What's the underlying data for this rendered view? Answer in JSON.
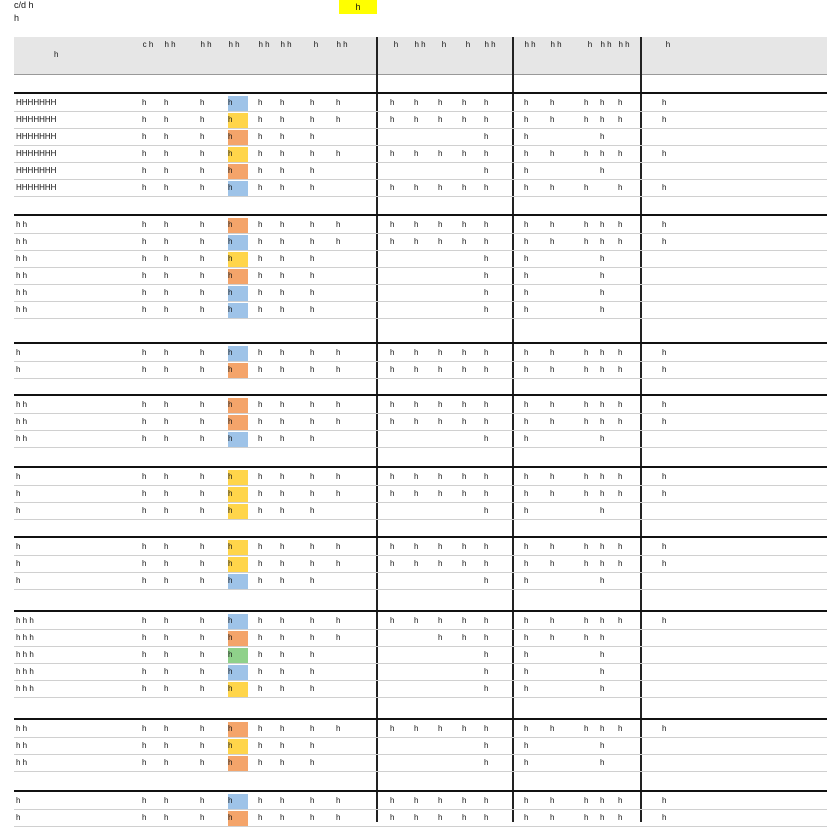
{
  "top": {
    "line1": "c/d h",
    "line2": "h",
    "highlight": "h"
  },
  "header": {
    "name": "h",
    "cols": [
      "c h",
      "h h",
      "h h",
      "h h",
      "h h",
      "h h",
      "h",
      "h h",
      "h",
      "h h",
      "h",
      "h",
      "h h",
      "h h",
      "h h",
      "h",
      "h h",
      "h h",
      "h"
    ]
  },
  "groups": [
    {
      "rows": [
        {
          "name": "HHHHHHH",
          "cells": [
            "h",
            "h",
            "h",
            "h",
            "h",
            "h",
            "h",
            "h",
            "h",
            "h",
            "h",
            "h",
            "h",
            "h",
            "h",
            "h",
            "h",
            "h",
            "h"
          ]
        },
        {
          "name": "HHHHHHH",
          "cells": [
            "h",
            "h",
            "h",
            "h",
            "h",
            "h",
            "h",
            "h",
            "h",
            "h",
            "h",
            "h",
            "h",
            "h",
            "h",
            "h",
            "h",
            "h",
            "h"
          ]
        },
        {
          "name": "HHHHHHH",
          "cells": [
            "h",
            "h",
            "h",
            "h",
            "h",
            "h",
            "h",
            "",
            "",
            "",
            "",
            "",
            "h",
            "h",
            "",
            "",
            "h",
            "",
            ""
          ]
        },
        {
          "name": "HHHHHHH",
          "cells": [
            "h",
            "h",
            "h",
            "h",
            "h",
            "h",
            "h",
            "h",
            "h",
            "h",
            "h",
            "h",
            "h",
            "h",
            "h",
            "h",
            "h",
            "h",
            "h"
          ]
        },
        {
          "name": "HHHHHHH",
          "cells": [
            "h",
            "h",
            "h",
            "h",
            "h",
            "h",
            "h",
            "",
            "",
            "",
            "",
            "",
            "h",
            "h",
            "",
            "",
            "h",
            "",
            ""
          ]
        },
        {
          "name": "HHHHHHH",
          "cells": [
            "h",
            "h",
            "h",
            "h",
            "h",
            "h",
            "h",
            "",
            "h",
            "h",
            "h",
            "h",
            "h",
            "h",
            "h",
            "h",
            "",
            "h",
            "h"
          ]
        }
      ]
    },
    {
      "rows": [
        {
          "name": "h h",
          "cells": [
            "h",
            "h",
            "h",
            "h",
            "h",
            "h",
            "h",
            "h",
            "h",
            "h",
            "h",
            "h",
            "h",
            "h",
            "h",
            "h",
            "h",
            "h",
            "h"
          ]
        },
        {
          "name": "h h",
          "cells": [
            "h",
            "h",
            "h",
            "h",
            "h",
            "h",
            "h",
            "h",
            "h",
            "h",
            "h",
            "h",
            "h",
            "h",
            "h",
            "h",
            "h",
            "h",
            "h"
          ]
        },
        {
          "name": "h h",
          "cells": [
            "h",
            "h",
            "h",
            "h",
            "h",
            "h",
            "h",
            "",
            "",
            "",
            "",
            "",
            "h",
            "h",
            "",
            "",
            "h",
            "",
            ""
          ]
        },
        {
          "name": "h h",
          "cells": [
            "h",
            "h",
            "h",
            "h",
            "h",
            "h",
            "h",
            "",
            "",
            "",
            "",
            "",
            "h",
            "h",
            "",
            "",
            "h",
            "",
            ""
          ]
        },
        {
          "name": "h h",
          "cells": [
            "h",
            "h",
            "h",
            "h",
            "h",
            "h",
            "h",
            "",
            "",
            "",
            "",
            "",
            "h",
            "h",
            "",
            "",
            "h",
            "",
            ""
          ]
        },
        {
          "name": "h h",
          "cells": [
            "h",
            "h",
            "h",
            "h",
            "h",
            "h",
            "h",
            "",
            "",
            "",
            "",
            "",
            "h",
            "h",
            "",
            "",
            "h",
            "",
            ""
          ]
        }
      ]
    },
    {
      "rows": [
        {
          "name": "h",
          "cells": [
            "h",
            "h",
            "h",
            "h",
            "h",
            "h",
            "h",
            "h",
            "h",
            "h",
            "h",
            "h",
            "h",
            "h",
            "h",
            "h",
            "h",
            "h",
            "h"
          ]
        },
        {
          "name": "h",
          "cells": [
            "h",
            "h",
            "h",
            "h",
            "h",
            "h",
            "h",
            "h",
            "h",
            "h",
            "h",
            "h",
            "h",
            "h",
            "h",
            "h",
            "h",
            "h",
            "h"
          ]
        }
      ]
    },
    {
      "rows": [
        {
          "name": "h h",
          "cells": [
            "h",
            "h",
            "h",
            "h",
            "h",
            "h",
            "h",
            "h",
            "h",
            "h",
            "h",
            "h",
            "h",
            "h",
            "h",
            "h",
            "h",
            "h",
            "h"
          ]
        },
        {
          "name": "h h",
          "cells": [
            "h",
            "h",
            "h",
            "h",
            "h",
            "h",
            "h",
            "h",
            "h",
            "h",
            "h",
            "h",
            "h",
            "h",
            "h",
            "h",
            "h",
            "h",
            "h"
          ]
        },
        {
          "name": "h h",
          "cells": [
            "h",
            "h",
            "h",
            "h",
            "h",
            "h",
            "h",
            "",
            "",
            "",
            "",
            "",
            "h",
            "h",
            "",
            "",
            "h",
            "",
            ""
          ]
        }
      ]
    },
    {
      "rows": [
        {
          "name": "h",
          "cells": [
            "h",
            "h",
            "h",
            "h",
            "h",
            "h",
            "h",
            "h",
            "h",
            "h",
            "h",
            "h",
            "h",
            "h",
            "h",
            "h",
            "h",
            "h",
            "h"
          ]
        },
        {
          "name": "h",
          "cells": [
            "h",
            "h",
            "h",
            "h",
            "h",
            "h",
            "h",
            "h",
            "h",
            "h",
            "h",
            "h",
            "h",
            "h",
            "h",
            "h",
            "h",
            "h",
            "h"
          ]
        },
        {
          "name": "h",
          "cells": [
            "h",
            "h",
            "h",
            "h",
            "h",
            "h",
            "h",
            "",
            "",
            "",
            "",
            "",
            "h",
            "h",
            "",
            "",
            "h",
            "",
            ""
          ]
        }
      ]
    },
    {
      "rows": [
        {
          "name": "h",
          "cells": [
            "h",
            "h",
            "h",
            "h",
            "h",
            "h",
            "h",
            "h",
            "h",
            "h",
            "h",
            "h",
            "h",
            "h",
            "h",
            "h",
            "h",
            "h",
            "h"
          ]
        },
        {
          "name": "h",
          "cells": [
            "h",
            "h",
            "h",
            "h",
            "h",
            "h",
            "h",
            "h",
            "h",
            "h",
            "h",
            "h",
            "h",
            "h",
            "h",
            "h",
            "h",
            "h",
            "h"
          ]
        },
        {
          "name": "h",
          "cells": [
            "h",
            "h",
            "h",
            "h",
            "h",
            "h",
            "h",
            "",
            "",
            "",
            "",
            "",
            "h",
            "h",
            "",
            "",
            "h",
            "",
            ""
          ]
        }
      ]
    },
    {
      "rows": [
        {
          "name": "h h h",
          "cells": [
            "h",
            "h",
            "h",
            "h",
            "h",
            "h",
            "h",
            "h",
            "h",
            "h",
            "h",
            "h",
            "h",
            "h",
            "h",
            "h",
            "h",
            "h",
            "h"
          ]
        },
        {
          "name": "h h h",
          "cells": [
            "h",
            "h",
            "h",
            "h",
            "h",
            "h",
            "h",
            "h",
            "",
            "",
            "h",
            "h",
            "h",
            "h",
            "h",
            "h",
            "h",
            "",
            ""
          ]
        },
        {
          "name": "h h h",
          "cells": [
            "h",
            "h",
            "h",
            "h",
            "h",
            "h",
            "h",
            "",
            "",
            "",
            "",
            "",
            "h",
            "h",
            "",
            "",
            "h",
            "",
            ""
          ]
        },
        {
          "name": "h h h",
          "cells": [
            "h",
            "h",
            "h",
            "h",
            "h",
            "h",
            "h",
            "",
            "",
            "",
            "",
            "",
            "h",
            "h",
            "",
            "",
            "h",
            "",
            ""
          ]
        },
        {
          "name": "h h h",
          "cells": [
            "h",
            "h",
            "h",
            "h",
            "h",
            "h",
            "h",
            "",
            "",
            "",
            "",
            "",
            "h",
            "h",
            "",
            "",
            "h",
            "",
            ""
          ]
        }
      ]
    },
    {
      "rows": [
        {
          "name": "h h",
          "cells": [
            "h",
            "h",
            "h",
            "h",
            "h",
            "h",
            "h",
            "h",
            "h",
            "h",
            "h",
            "h",
            "h",
            "h",
            "h",
            "h",
            "h",
            "h",
            "h"
          ]
        },
        {
          "name": "h h",
          "cells": [
            "h",
            "h",
            "h",
            "h",
            "h",
            "h",
            "h",
            "",
            "",
            "",
            "",
            "",
            "h",
            "h",
            "",
            "",
            "h",
            "",
            ""
          ]
        },
        {
          "name": "h h",
          "cells": [
            "h",
            "h",
            "h",
            "h",
            "h",
            "h",
            "h",
            "",
            "",
            "",
            "",
            "",
            "h",
            "h",
            "",
            "",
            "h",
            "",
            ""
          ]
        }
      ]
    },
    {
      "rows": [
        {
          "name": "h",
          "cells": [
            "h",
            "h",
            "h",
            "h",
            "h",
            "h",
            "h",
            "h",
            "h",
            "h",
            "h",
            "h",
            "h",
            "h",
            "h",
            "h",
            "h",
            "h",
            "h"
          ]
        },
        {
          "name": "h",
          "cells": [
            "h",
            "h",
            "h",
            "h",
            "h",
            "h",
            "h",
            "h",
            "h",
            "h",
            "h",
            "h",
            "h",
            "h",
            "h",
            "h",
            "h",
            "h",
            "h"
          ]
        }
      ]
    }
  ],
  "colors": {
    "blue": "#9ec3e8",
    "orange": "#f4a46a",
    "yellow": "#ffd54a",
    "green": "#8fd18a"
  }
}
